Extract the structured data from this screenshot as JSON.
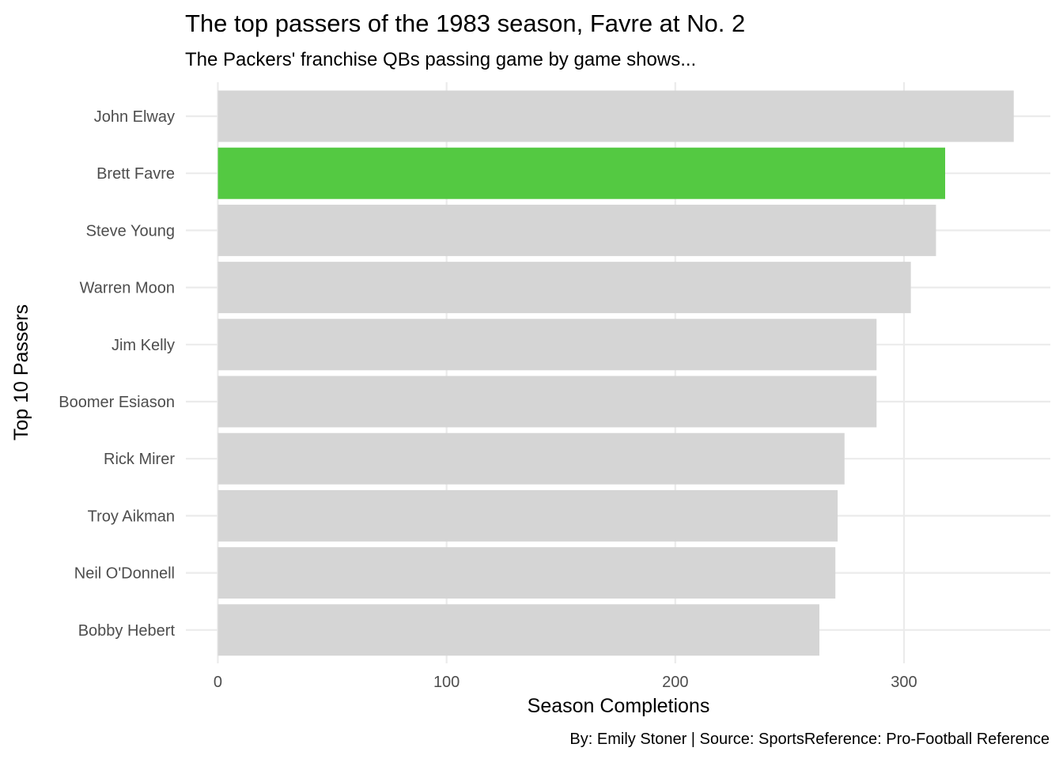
{
  "chart_data": {
    "type": "bar",
    "orientation": "horizontal",
    "title": "The top passers of the 1983 season, Favre at No. 2",
    "subtitle": "The Packers' franchise QBs passing game by game shows...",
    "xlabel": "Season Completions",
    "ylabel": "Top 10 Passers",
    "caption": "By: Emily Stoner | Source: SportsReference: Pro-Football Reference",
    "categories": [
      "John Elway",
      "Brett Favre",
      "Steve Young",
      "Warren Moon",
      "Jim Kelly",
      "Boomer Esiason",
      "Rick Mirer",
      "Troy Aikman",
      "Neil O'Donnell",
      "Bobby Hebert"
    ],
    "values": [
      348,
      318,
      314,
      303,
      288,
      288,
      274,
      271,
      270,
      263
    ],
    "highlight": "Brett Favre",
    "highlight_color": "#54c942",
    "bar_color": "#d5d5d5",
    "xlim": [
      -14,
      364
    ],
    "xticks": [
      0,
      100,
      200,
      300
    ],
    "xtick_labels": [
      "0",
      "100",
      "200",
      "300"
    ],
    "grid": true,
    "theme": "minimal"
  }
}
